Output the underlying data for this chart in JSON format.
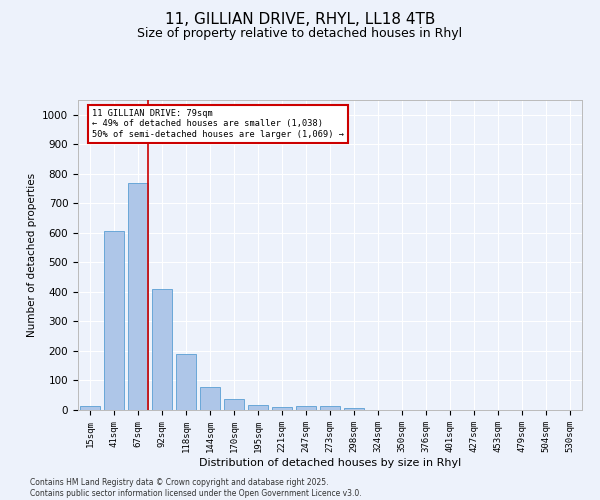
{
  "title_line1": "11, GILLIAN DRIVE, RHYL, LL18 4TB",
  "title_line2": "Size of property relative to detached houses in Rhyl",
  "xlabel": "Distribution of detached houses by size in Rhyl",
  "ylabel": "Number of detached properties",
  "categories": [
    "15sqm",
    "41sqm",
    "67sqm",
    "92sqm",
    "118sqm",
    "144sqm",
    "170sqm",
    "195sqm",
    "221sqm",
    "247sqm",
    "273sqm",
    "298sqm",
    "324sqm",
    "350sqm",
    "376sqm",
    "401sqm",
    "427sqm",
    "453sqm",
    "479sqm",
    "504sqm",
    "530sqm"
  ],
  "values": [
    15,
    605,
    770,
    410,
    190,
    78,
    36,
    18,
    10,
    12,
    12,
    7,
    0,
    0,
    0,
    0,
    0,
    0,
    0,
    0,
    0
  ],
  "bar_color": "#aec6e8",
  "bar_edge_color": "#5a9fd4",
  "background_color": "#edf2fb",
  "grid_color": "#ffffff",
  "annotation_box_color": "#cc0000",
  "annotation_line_color": "#cc0000",
  "annotation_text_line1": "11 GILLIAN DRIVE: 79sqm",
  "annotation_text_line2": "← 49% of detached houses are smaller (1,038)",
  "annotation_text_line3": "50% of semi-detached houses are larger (1,069) →",
  "ylim": [
    0,
    1050
  ],
  "yticks": [
    0,
    100,
    200,
    300,
    400,
    500,
    600,
    700,
    800,
    900,
    1000
  ],
  "footnote_line1": "Contains HM Land Registry data © Crown copyright and database right 2025.",
  "footnote_line2": "Contains public sector information licensed under the Open Government Licence v3.0."
}
